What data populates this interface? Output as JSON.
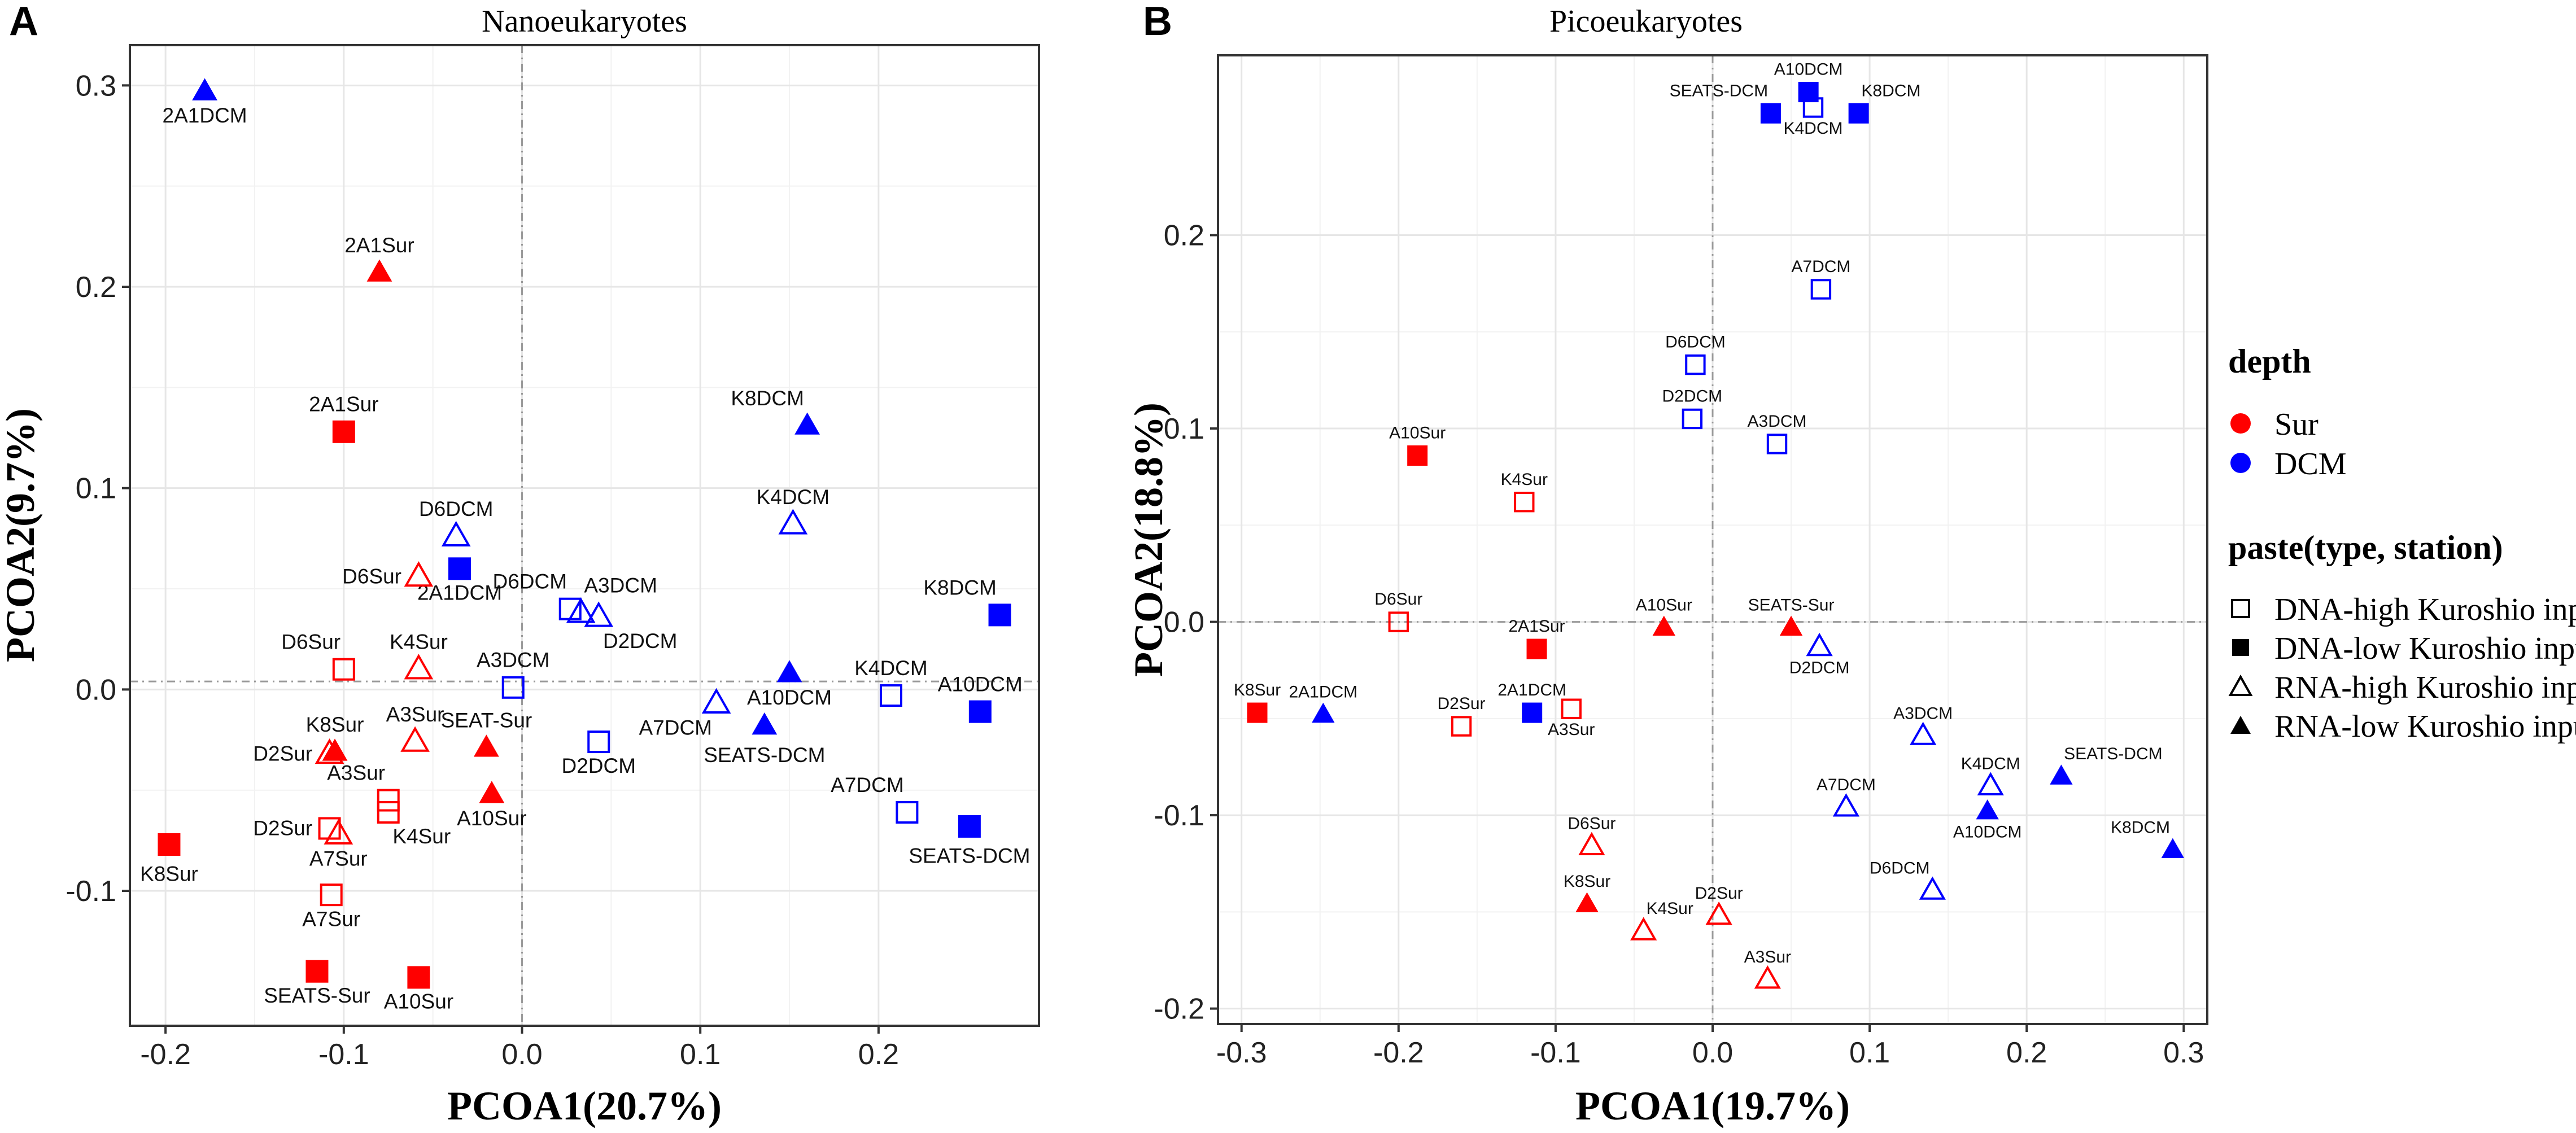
{
  "colors": {
    "sur": "#ff0000",
    "dcm": "#0000ff"
  },
  "legend": {
    "depth_title": "depth",
    "depth_items": [
      {
        "label": "Sur",
        "color": "#ff0000"
      },
      {
        "label": "DCM",
        "color": "#0000ff"
      }
    ],
    "type_title": "paste(type, station)",
    "type_items": [
      {
        "label": "DNA-high Kuroshio input",
        "shape": "square-open"
      },
      {
        "label": "DNA-low Kuroshio input",
        "shape": "square-filled"
      },
      {
        "label": "RNA-high Kuroshio input",
        "shape": "triangle-open"
      },
      {
        "label": "RNA-low Kuroshio input",
        "shape": "triangle-filled"
      }
    ]
  },
  "chart_data": [
    {
      "type": "scatter",
      "panel": "A",
      "title": "Nanoeukaryotes",
      "xlabel": "PCOA1(20.7%)",
      "ylabel": "PCOA2(9.7%)",
      "xlim": [
        -0.22,
        0.29
      ],
      "ylim": [
        -0.167,
        0.32
      ],
      "xticks": [
        -0.2,
        -0.1,
        0.0,
        0.1,
        0.2
      ],
      "xtick_labels": [
        "-0.2",
        "-0.1",
        "0.0",
        "0.1",
        "0.2"
      ],
      "yticks": [
        -0.1,
        0.0,
        0.1,
        0.2,
        0.3
      ],
      "ytick_labels": [
        "-0.1",
        "0.0",
        "0.1",
        "0.2",
        "0.3"
      ],
      "zero_lines": {
        "x": 0.0,
        "y": 0.004
      },
      "points": [
        {
          "label": "2A1DCM",
          "x": -0.178,
          "y": 0.297,
          "depth": "DCM",
          "shape": "triangle-filled",
          "lpos": "below"
        },
        {
          "label": "2A1Sur",
          "x": -0.08,
          "y": 0.207,
          "depth": "Sur",
          "shape": "triangle-filled",
          "lpos": "above"
        },
        {
          "label": "2A1Sur",
          "x": -0.1,
          "y": 0.128,
          "depth": "Sur",
          "shape": "square-filled",
          "lpos": "above"
        },
        {
          "label": "K8DCM",
          "x": 0.16,
          "y": 0.131,
          "depth": "DCM",
          "shape": "triangle-filled",
          "lpos": "aboveleft"
        },
        {
          "label": "K4DCM",
          "x": 0.152,
          "y": 0.082,
          "depth": "DCM",
          "shape": "triangle-open",
          "lpos": "above"
        },
        {
          "label": "D6DCM",
          "x": -0.037,
          "y": 0.076,
          "depth": "DCM",
          "shape": "triangle-open",
          "lpos": "above"
        },
        {
          "label": "2A1DCM",
          "x": -0.035,
          "y": 0.06,
          "depth": "DCM",
          "shape": "square-filled",
          "lpos": "below"
        },
        {
          "label": "D6Sur",
          "x": -0.058,
          "y": 0.056,
          "depth": "Sur",
          "shape": "triangle-open",
          "lpos": "left"
        },
        {
          "label": "K8DCM",
          "x": 0.268,
          "y": 0.037,
          "depth": "DCM",
          "shape": "square-filled",
          "lpos": "aboveleft"
        },
        {
          "label": "D6DCM",
          "x": 0.027,
          "y": 0.04,
          "depth": "DCM",
          "shape": "square-open",
          "lpos": "aboveleft"
        },
        {
          "label": "A3DCM",
          "x": 0.033,
          "y": 0.038,
          "depth": "DCM",
          "shape": "triangle-open",
          "lpos": "aboveright"
        },
        {
          "label": "D2DCM",
          "x": 0.043,
          "y": 0.036,
          "depth": "DCM",
          "shape": "triangle-open",
          "lpos": "belowright"
        },
        {
          "label": "D6Sur",
          "x": -0.1,
          "y": 0.01,
          "depth": "Sur",
          "shape": "square-open",
          "lpos": "aboveleft"
        },
        {
          "label": "K4Sur",
          "x": -0.058,
          "y": 0.01,
          "depth": "Sur",
          "shape": "triangle-open",
          "lpos": "above"
        },
        {
          "label": "A3DCM",
          "x": -0.005,
          "y": 0.001,
          "depth": "DCM",
          "shape": "square-open",
          "lpos": "above"
        },
        {
          "label": "A10DCM",
          "x": 0.15,
          "y": 0.008,
          "depth": "DCM",
          "shape": "triangle-filled",
          "lpos": "below"
        },
        {
          "label": "K4DCM",
          "x": 0.207,
          "y": -0.003,
          "depth": "DCM",
          "shape": "square-open",
          "lpos": "above"
        },
        {
          "label": "A10DCM",
          "x": 0.257,
          "y": -0.011,
          "depth": "DCM",
          "shape": "square-filled",
          "lpos": "above"
        },
        {
          "label": "A7DCM",
          "x": 0.109,
          "y": -0.007,
          "depth": "DCM",
          "shape": "triangle-open",
          "lpos": "belowleft"
        },
        {
          "label": "SEATS-DCM",
          "x": 0.136,
          "y": -0.018,
          "depth": "DCM",
          "shape": "triangle-filled",
          "lpos": "belowbig"
        },
        {
          "label": "D2DCM",
          "x": 0.043,
          "y": -0.026,
          "depth": "DCM",
          "shape": "square-open",
          "lpos": "below"
        },
        {
          "label": "A3Sur",
          "x": -0.06,
          "y": -0.026,
          "depth": "Sur",
          "shape": "triangle-open",
          "lpos": "above"
        },
        {
          "label": "SEAT-Sur",
          "x": -0.02,
          "y": -0.029,
          "depth": "Sur",
          "shape": "triangle-filled",
          "lpos": "above"
        },
        {
          "label": "K8Sur",
          "x": -0.105,
          "y": -0.031,
          "depth": "Sur",
          "shape": "triangle-filled",
          "lpos": "above"
        },
        {
          "label": "D2Sur",
          "x": -0.108,
          "y": -0.032,
          "depth": "Sur",
          "shape": "triangle-open",
          "lpos": "left"
        },
        {
          "label": "A10Sur",
          "x": -0.017,
          "y": -0.052,
          "depth": "Sur",
          "shape": "triangle-filled",
          "lpos": "below"
        },
        {
          "label": "A3Sur",
          "x": -0.075,
          "y": -0.055,
          "depth": "Sur",
          "shape": "square-open",
          "lpos": "aboveleft"
        },
        {
          "label": "K4Sur",
          "x": -0.075,
          "y": -0.061,
          "depth": "Sur",
          "shape": "square-open",
          "lpos": "belowright"
        },
        {
          "label": "A7DCM",
          "x": 0.216,
          "y": -0.061,
          "depth": "DCM",
          "shape": "square-open",
          "lpos": "aboveleft"
        },
        {
          "label": "SEATS-DCM",
          "x": 0.251,
          "y": -0.068,
          "depth": "DCM",
          "shape": "square-filled",
          "lpos": "belowbig"
        },
        {
          "label": "D2Sur",
          "x": -0.108,
          "y": -0.069,
          "depth": "Sur",
          "shape": "square-open",
          "lpos": "left"
        },
        {
          "label": "A7Sur",
          "x": -0.103,
          "y": -0.072,
          "depth": "Sur",
          "shape": "triangle-open",
          "lpos": "below"
        },
        {
          "label": "K8Sur",
          "x": -0.198,
          "y": -0.077,
          "depth": "Sur",
          "shape": "square-filled",
          "lpos": "belowbig"
        },
        {
          "label": "A7Sur",
          "x": -0.107,
          "y": -0.102,
          "depth": "Sur",
          "shape": "square-open",
          "lpos": "below"
        },
        {
          "label": "SEATS-Sur",
          "x": -0.115,
          "y": -0.14,
          "depth": "Sur",
          "shape": "square-filled",
          "lpos": "below"
        },
        {
          "label": "A10Sur",
          "x": -0.058,
          "y": -0.143,
          "depth": "Sur",
          "shape": "square-filled",
          "lpos": "below"
        }
      ]
    },
    {
      "type": "scatter",
      "panel": "B",
      "title": "Picoeukaryotes",
      "xlabel": "PCOA1(19.7%)",
      "ylabel": "PCOA2(18.8%)",
      "xlim": [
        -0.315,
        0.315
      ],
      "ylim": [
        -0.208,
        0.293
      ],
      "xticks": [
        -0.3,
        -0.2,
        -0.1,
        0.0,
        0.1,
        0.2,
        0.3
      ],
      "xtick_labels": [
        "-0.3",
        "-0.2",
        "-0.1",
        "0.0",
        "0.1",
        "0.2",
        "0.3"
      ],
      "yticks": [
        -0.2,
        -0.1,
        0.0,
        0.1,
        0.2
      ],
      "ytick_labels": [
        "-0.2",
        "-0.1",
        "0.0",
        "0.1",
        "0.2"
      ],
      "zero_lines": {
        "x": 0.0,
        "y": 0.0
      },
      "points": [
        {
          "label": "A10DCM",
          "x": 0.061,
          "y": 0.274,
          "depth": "DCM",
          "shape": "square-filled",
          "lpos": "above"
        },
        {
          "label": "SEATS-DCM",
          "x": 0.037,
          "y": 0.263,
          "depth": "DCM",
          "shape": "square-filled",
          "lpos": "aboveleft"
        },
        {
          "label": "K4DCM",
          "x": 0.064,
          "y": 0.266,
          "depth": "DCM",
          "shape": "square-open",
          "lpos": "below"
        },
        {
          "label": "K8DCM",
          "x": 0.093,
          "y": 0.263,
          "depth": "DCM",
          "shape": "square-filled",
          "lpos": "aboveright"
        },
        {
          "label": "A7DCM",
          "x": 0.069,
          "y": 0.172,
          "depth": "DCM",
          "shape": "square-open",
          "lpos": "above"
        },
        {
          "label": "D6DCM",
          "x": -0.011,
          "y": 0.133,
          "depth": "DCM",
          "shape": "square-open",
          "lpos": "above"
        },
        {
          "label": "D2DCM",
          "x": -0.013,
          "y": 0.105,
          "depth": "DCM",
          "shape": "square-open",
          "lpos": "above"
        },
        {
          "label": "A3DCM",
          "x": 0.041,
          "y": 0.092,
          "depth": "DCM",
          "shape": "square-open",
          "lpos": "above"
        },
        {
          "label": "A10Sur",
          "x": -0.188,
          "y": 0.086,
          "depth": "Sur",
          "shape": "square-filled",
          "lpos": "above"
        },
        {
          "label": "K4Sur",
          "x": -0.12,
          "y": 0.062,
          "depth": "Sur",
          "shape": "square-open",
          "lpos": "above"
        },
        {
          "label": "D6Sur",
          "x": -0.2,
          "y": 0.0,
          "depth": "Sur",
          "shape": "square-open",
          "lpos": "above"
        },
        {
          "label": "A10Sur",
          "x": -0.031,
          "y": -0.003,
          "depth": "Sur",
          "shape": "triangle-filled",
          "lpos": "above"
        },
        {
          "label": "SEATS-Sur",
          "x": 0.05,
          "y": -0.003,
          "depth": "Sur",
          "shape": "triangle-filled",
          "lpos": "above"
        },
        {
          "label": "D2DCM",
          "x": 0.068,
          "y": -0.013,
          "depth": "DCM",
          "shape": "triangle-open",
          "lpos": "below"
        },
        {
          "label": "2A1Sur",
          "x": -0.112,
          "y": -0.014,
          "depth": "Sur",
          "shape": "square-filled",
          "lpos": "above"
        },
        {
          "label": "K8Sur",
          "x": -0.29,
          "y": -0.047,
          "depth": "Sur",
          "shape": "square-filled",
          "lpos": "above"
        },
        {
          "label": "2A1DCM",
          "x": -0.248,
          "y": -0.048,
          "depth": "DCM",
          "shape": "triangle-filled",
          "lpos": "above"
        },
        {
          "label": "2A1DCM",
          "x": -0.115,
          "y": -0.047,
          "depth": "DCM",
          "shape": "square-filled",
          "lpos": "above"
        },
        {
          "label": "D2Sur",
          "x": -0.16,
          "y": -0.054,
          "depth": "Sur",
          "shape": "square-open",
          "lpos": "above"
        },
        {
          "label": "A3Sur",
          "x": -0.09,
          "y": -0.045,
          "depth": "Sur",
          "shape": "square-open",
          "lpos": "below"
        },
        {
          "label": "A3DCM",
          "x": 0.134,
          "y": -0.059,
          "depth": "DCM",
          "shape": "triangle-open",
          "lpos": "above"
        },
        {
          "label": "K4DCM",
          "x": 0.177,
          "y": -0.085,
          "depth": "DCM",
          "shape": "triangle-open",
          "lpos": "above"
        },
        {
          "label": "SEATS-DCM",
          "x": 0.222,
          "y": -0.08,
          "depth": "DCM",
          "shape": "triangle-filled",
          "lpos": "aboveright"
        },
        {
          "label": "A7DCM",
          "x": 0.085,
          "y": -0.096,
          "depth": "DCM",
          "shape": "triangle-open",
          "lpos": "above"
        },
        {
          "label": "A10DCM",
          "x": 0.175,
          "y": -0.098,
          "depth": "DCM",
          "shape": "triangle-filled",
          "lpos": "below"
        },
        {
          "label": "K8DCM",
          "x": 0.293,
          "y": -0.118,
          "depth": "DCM",
          "shape": "triangle-filled",
          "lpos": "aboveleft"
        },
        {
          "label": "D6Sur",
          "x": -0.077,
          "y": -0.116,
          "depth": "Sur",
          "shape": "triangle-open",
          "lpos": "above"
        },
        {
          "label": "D6DCM",
          "x": 0.14,
          "y": -0.139,
          "depth": "DCM",
          "shape": "triangle-open",
          "lpos": "aboveleft"
        },
        {
          "label": "K8Sur",
          "x": -0.08,
          "y": -0.146,
          "depth": "Sur",
          "shape": "triangle-filled",
          "lpos": "above"
        },
        {
          "label": "K4Sur",
          "x": -0.044,
          "y": -0.16,
          "depth": "Sur",
          "shape": "triangle-open",
          "lpos": "aboveright"
        },
        {
          "label": "D2Sur",
          "x": 0.004,
          "y": -0.152,
          "depth": "Sur",
          "shape": "triangle-open",
          "lpos": "above"
        },
        {
          "label": "A3Sur",
          "x": 0.035,
          "y": -0.185,
          "depth": "Sur",
          "shape": "triangle-open",
          "lpos": "above"
        }
      ]
    }
  ]
}
